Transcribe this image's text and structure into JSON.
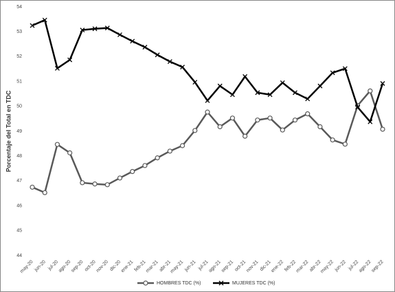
{
  "chart_data": {
    "type": "line",
    "y_label": "Porcentaje del Total en TDC",
    "categories": [
      "may-20",
      "jun-20",
      "jul-20",
      "ago-20",
      "sep-20",
      "oct-20",
      "nov-20",
      "dic-20",
      "ene-21",
      "feb-21",
      "mar-21",
      "abr-21",
      "may-21",
      "jun-21",
      "jul-21",
      "ago-21",
      "sep-21",
      "oct-21",
      "nov-21",
      "dic-21",
      "ene-22",
      "feb-22",
      "mar-22",
      "abr-22",
      "may-22",
      "jun-22",
      "jul-22",
      "ago-22",
      "sep-22"
    ],
    "series": [
      {
        "name": "HOMBRES TDC (%)",
        "color": "#595959",
        "marker": "circle",
        "values": [
          46.75,
          46.53,
          48.47,
          48.13,
          46.93,
          46.88,
          46.85,
          47.12,
          47.38,
          47.62,
          47.93,
          48.2,
          48.42,
          49.03,
          49.77,
          49.18,
          49.53,
          48.8,
          49.45,
          49.53,
          49.05,
          49.45,
          49.7,
          49.18,
          48.65,
          48.48,
          50.03,
          50.62,
          49.08
        ]
      },
      {
        "name": "MUJERES TDC (%)",
        "color": "#000000",
        "marker": "x",
        "values": [
          53.25,
          53.47,
          51.53,
          51.87,
          53.07,
          53.12,
          53.15,
          52.88,
          52.62,
          52.38,
          52.07,
          51.8,
          51.58,
          50.97,
          50.23,
          50.82,
          50.47,
          51.2,
          50.55,
          50.47,
          50.95,
          50.55,
          50.3,
          50.82,
          51.35,
          51.52,
          49.97,
          49.38,
          50.92
        ]
      }
    ],
    "ylim": [
      44,
      54
    ],
    "yticks": [
      44,
      45,
      46,
      47,
      48,
      49,
      50,
      51,
      52,
      53,
      54
    ],
    "grid": false
  }
}
